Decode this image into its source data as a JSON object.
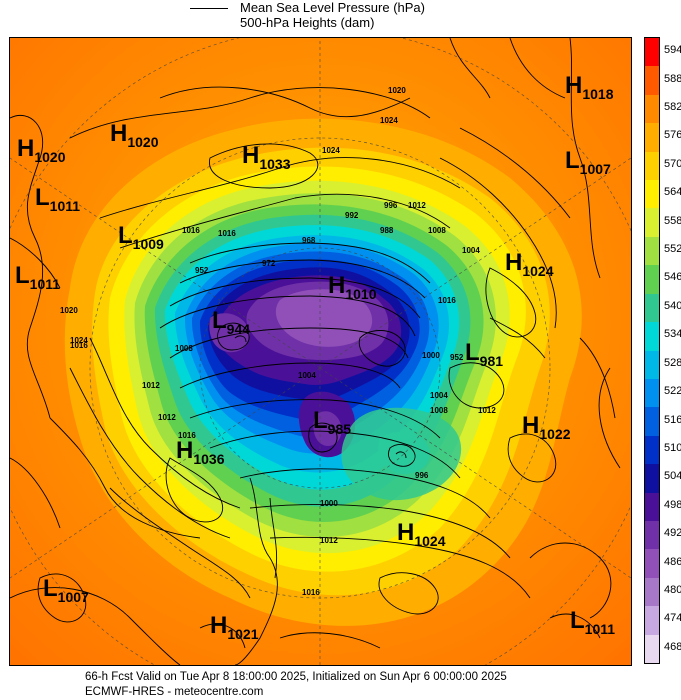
{
  "legend": {
    "title": "Mean Sea Level Pressure (hPa)",
    "subtitle": "500-hPa Heights (dam)"
  },
  "colorbar": {
    "levels": [
      "594",
      "588",
      "582",
      "576",
      "570",
      "564",
      "558",
      "552",
      "546",
      "540",
      "534",
      "528",
      "522",
      "516",
      "510",
      "504",
      "498",
      "492",
      "486",
      "480",
      "474",
      "468"
    ],
    "colors": [
      "#ff0000",
      "#ff5a00",
      "#ff8a00",
      "#ffae00",
      "#ffd000",
      "#ffee00",
      "#d8f030",
      "#a0e040",
      "#60d050",
      "#30c890",
      "#00d8d8",
      "#00b8e8",
      "#0090f0",
      "#0060e0",
      "#0030c8",
      "#1010a0",
      "#4a1098",
      "#7030a8",
      "#9050b8",
      "#a878c8",
      "#c8a8e0",
      "#e8d8f0"
    ]
  },
  "pressure_centers": [
    {
      "type": "H",
      "value": "1020",
      "name": "high-1020-nw"
    },
    {
      "type": "H",
      "value": "1020",
      "name": "high-1020-w"
    },
    {
      "type": "H",
      "value": "1033",
      "name": "high-1033"
    },
    {
      "type": "L",
      "value": "1011",
      "name": "low-1011-w"
    },
    {
      "type": "L",
      "value": "1009",
      "name": "low-1009"
    },
    {
      "type": "L",
      "value": "1011",
      "name": "low-1011-sw"
    },
    {
      "type": "H",
      "value": "1018",
      "name": "high-1018"
    },
    {
      "type": "L",
      "value": "1007",
      "name": "low-1007-e"
    },
    {
      "type": "H",
      "value": "1024",
      "name": "high-1024-e"
    },
    {
      "type": "H",
      "value": "1010",
      "name": "high-1010"
    },
    {
      "type": "L",
      "value": "944",
      "name": "low-944"
    },
    {
      "type": "L",
      "value": "981",
      "name": "low-981"
    },
    {
      "type": "L",
      "value": "985",
      "name": "low-985"
    },
    {
      "type": "H",
      "value": "1022",
      "name": "high-1022"
    },
    {
      "type": "H",
      "value": "1036",
      "name": "high-1036"
    },
    {
      "type": "H",
      "value": "1024",
      "name": "high-1024-s"
    },
    {
      "type": "L",
      "value": "1007",
      "name": "low-1007-sw"
    },
    {
      "type": "H",
      "value": "1021",
      "name": "high-1021"
    },
    {
      "type": "L",
      "value": "1011",
      "name": "low-1011-se"
    }
  ],
  "contour_labels": [
    "1016",
    "1016",
    "1024",
    "1012",
    "1008",
    "1004",
    "996",
    "992",
    "988",
    "968",
    "972",
    "952",
    "1020",
    "1024",
    "1016",
    "1000",
    "1004",
    "1008",
    "1012",
    "1016",
    "1024",
    "1020",
    "1008",
    "1012",
    "1012",
    "1016",
    "1000",
    "996",
    "1004",
    "1012",
    "952",
    "1016"
  ],
  "footer": {
    "line1": "66-h Fcst Valid on Tue Apr  8 18:00:00 2025, Initialized on Sun Apr  6 00:00:00 2025",
    "line2": "ECMWF-HRES  - meteocentre.com"
  }
}
